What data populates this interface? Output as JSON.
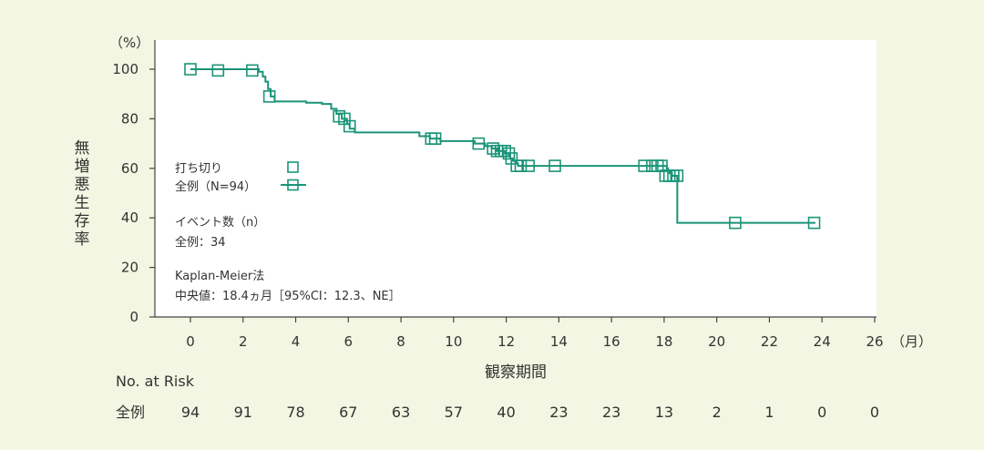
{
  "chart_data": {
    "type": "line",
    "title": "",
    "xlabel": "観察期間",
    "x_unit": "（月）",
    "ylabel": "無増悪生存率",
    "y_unit": "（%）",
    "xlim": [
      0,
      26
    ],
    "ylim": [
      0,
      100
    ],
    "x_ticks": [
      0,
      2,
      4,
      6,
      8,
      10,
      12,
      14,
      16,
      18,
      20,
      22,
      24,
      26
    ],
    "y_ticks": [
      0,
      20,
      40,
      60,
      80,
      100
    ],
    "grid": false,
    "line_color": "#1a9478",
    "series": [
      {
        "name": "全例（N=94）",
        "curve": [
          [
            0,
            100
          ],
          [
            2.5,
            100
          ],
          [
            2.6,
            99
          ],
          [
            2.75,
            97
          ],
          [
            2.85,
            95
          ],
          [
            2.95,
            92
          ],
          [
            3.05,
            89
          ],
          [
            3.2,
            87
          ],
          [
            3.8,
            87
          ],
          [
            4.4,
            86.5
          ],
          [
            5.0,
            86
          ],
          [
            5.35,
            84
          ],
          [
            5.55,
            82
          ],
          [
            5.75,
            80
          ],
          [
            5.95,
            78
          ],
          [
            6.05,
            76
          ],
          [
            6.25,
            74.5
          ],
          [
            8.5,
            74.5
          ],
          [
            8.7,
            73
          ],
          [
            9.1,
            72
          ],
          [
            9.5,
            71
          ],
          [
            10.3,
            71
          ],
          [
            10.8,
            70
          ],
          [
            11.2,
            69
          ],
          [
            11.45,
            68
          ],
          [
            11.65,
            67
          ],
          [
            11.95,
            66
          ],
          [
            12.1,
            65
          ],
          [
            12.15,
            64
          ],
          [
            12.25,
            63
          ],
          [
            12.35,
            62
          ],
          [
            12.45,
            61
          ],
          [
            18.05,
            61
          ],
          [
            18.1,
            60
          ],
          [
            18.15,
            59
          ],
          [
            18.2,
            58
          ],
          [
            18.3,
            57
          ],
          [
            18.45,
            57
          ],
          [
            18.5,
            38
          ],
          [
            23.75,
            38
          ]
        ],
        "censored": [
          [
            0,
            100
          ],
          [
            1.05,
            99.5
          ],
          [
            2.35,
            99.5
          ],
          [
            3.0,
            89
          ],
          [
            5.65,
            81
          ],
          [
            5.85,
            80
          ],
          [
            6.05,
            77
          ],
          [
            9.15,
            72
          ],
          [
            9.3,
            72
          ],
          [
            10.95,
            70
          ],
          [
            11.5,
            68
          ],
          [
            11.65,
            67
          ],
          [
            11.8,
            67
          ],
          [
            11.95,
            67
          ],
          [
            12.1,
            66
          ],
          [
            12.2,
            64
          ],
          [
            12.4,
            61
          ],
          [
            12.55,
            61
          ],
          [
            12.85,
            61
          ],
          [
            13.85,
            61
          ],
          [
            17.25,
            61
          ],
          [
            17.55,
            61
          ],
          [
            17.75,
            61
          ],
          [
            17.9,
            61
          ],
          [
            18.05,
            57
          ],
          [
            18.2,
            57
          ],
          [
            18.35,
            57
          ],
          [
            18.5,
            57
          ],
          [
            20.7,
            38
          ],
          [
            23.7,
            38
          ]
        ]
      }
    ],
    "legend": {
      "position": "center-left",
      "censor_label": "打ち切り",
      "series_label": "全例（N=94）"
    },
    "annotations": {
      "events_label": "イベント数（n）",
      "events_value": "全例：34",
      "method": "Kaplan-Meier法",
      "median": "中央値：18.4ヵ月［95%CI：12.3、NE］"
    },
    "at_risk": {
      "header": "No. at Risk",
      "row_label": "全例",
      "values": [
        94,
        91,
        78,
        67,
        63,
        57,
        40,
        23,
        23,
        13,
        2,
        1,
        0,
        0
      ]
    }
  }
}
